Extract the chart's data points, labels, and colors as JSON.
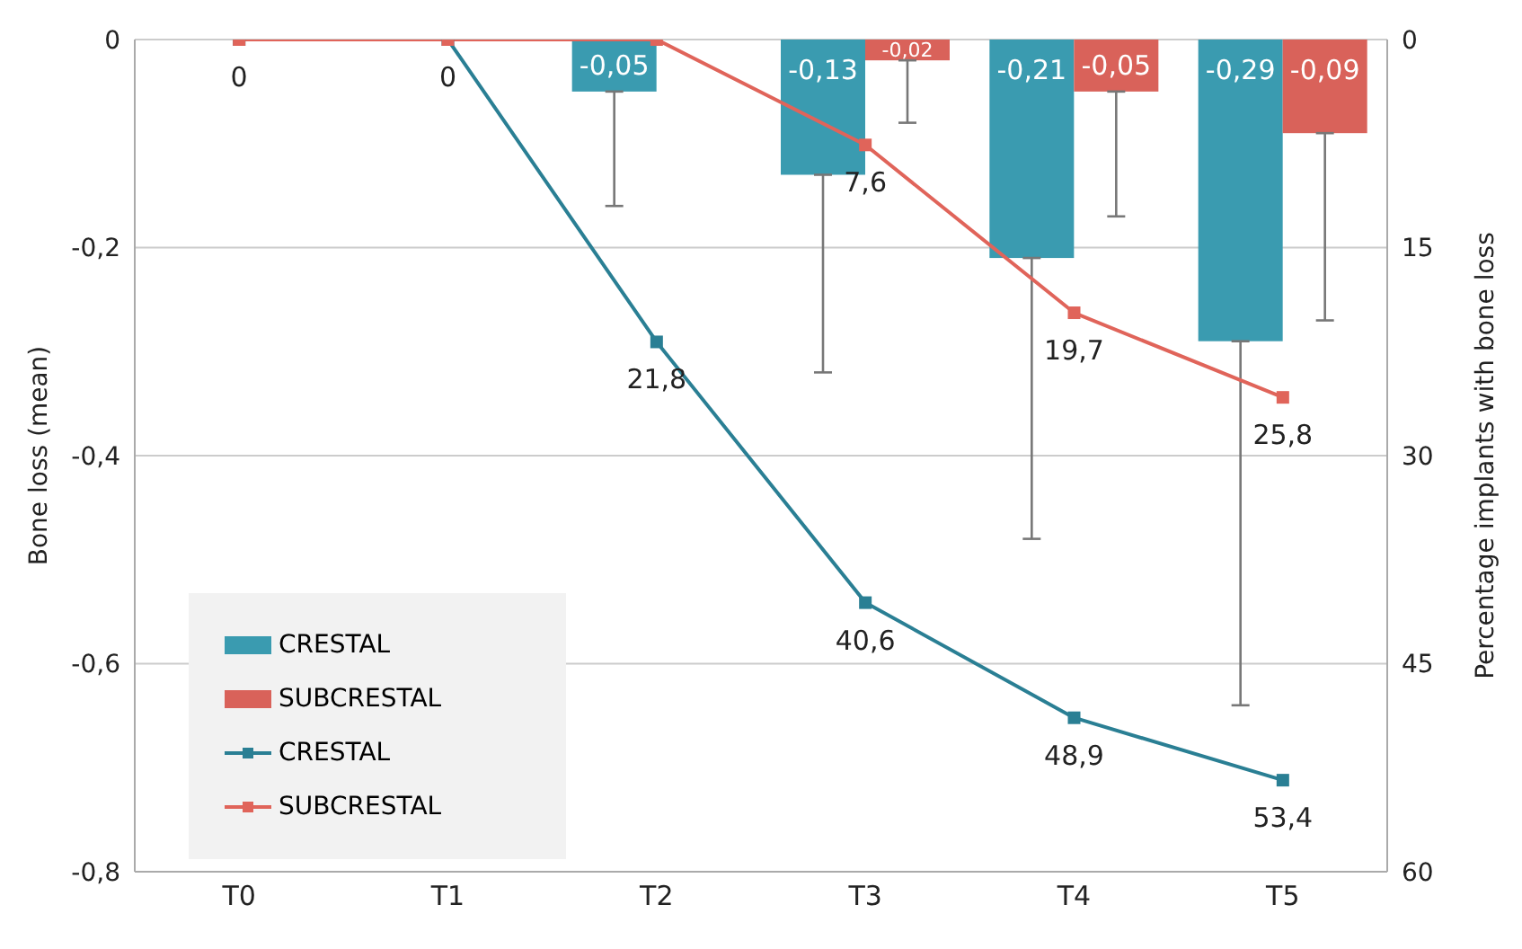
{
  "chart_data": {
    "type": "bar",
    "categories": [
      "T0",
      "T1",
      "T2",
      "T3",
      "T4",
      "T5"
    ],
    "ylabel": "Bone loss (mean)",
    "y2label": "Percentage implants with bone loss",
    "ylim": [
      -0.8,
      0
    ],
    "yticks": [
      {
        "value": -0.8,
        "label": "-0,8"
      },
      {
        "value": -0.6,
        "label": "-0,6"
      },
      {
        "value": -0.4,
        "label": "-0,4"
      },
      {
        "value": -0.2,
        "label": "-0,2"
      },
      0
    ],
    "y2lim": [
      60,
      0
    ],
    "y2ticks": [
      0,
      15,
      30,
      45,
      60
    ],
    "grid": "y",
    "legend": "bottom left",
    "marker": "square",
    "line_style": "solid",
    "series": [
      {
        "name": "CRESTAL",
        "color": "#3a9bb0",
        "values": [
          null,
          null,
          -0.05,
          -0.13,
          -0.21,
          -0.29
        ],
        "errors": [
          null,
          null,
          [
            -0.16,
            -0.05
          ],
          [
            -0.32,
            -0.13
          ],
          [
            -0.48,
            -0.21
          ],
          [
            -0.64,
            -0.29
          ]
        ],
        "value_labels": [
          null,
          null,
          "-0,05",
          "-0,13",
          "-0,21",
          "-0,29"
        ]
      },
      {
        "name": "SUBCRESTAL",
        "color": "#d9625a",
        "values": [
          null,
          null,
          null,
          -0.02,
          -0.05,
          -0.09
        ],
        "errors": [
          null,
          null,
          null,
          [
            -0.08,
            -0.02
          ],
          [
            -0.17,
            -0.05
          ],
          [
            -0.27,
            -0.09
          ]
        ],
        "value_labels": [
          null,
          null,
          null,
          "-0,02",
          "-0,05",
          "-0,09"
        ]
      },
      {
        "name": "CRESTAL",
        "type": "line",
        "axis": "y2",
        "color": "#2a7f94",
        "values": [
          0,
          0,
          21.8,
          40.6,
          48.9,
          53.4
        ],
        "value_labels": [
          "0",
          "0",
          "21,8",
          "40,6",
          "48,9",
          "53,4"
        ]
      },
      {
        "name": "SUBCRESTAL",
        "type": "line",
        "axis": "y2",
        "color": "#e0645a",
        "values": [
          0,
          0,
          0,
          7.6,
          19.7,
          25.8
        ],
        "value_labels": [
          null,
          null,
          null,
          "7,6",
          "19,7",
          "25,8"
        ]
      }
    ]
  }
}
